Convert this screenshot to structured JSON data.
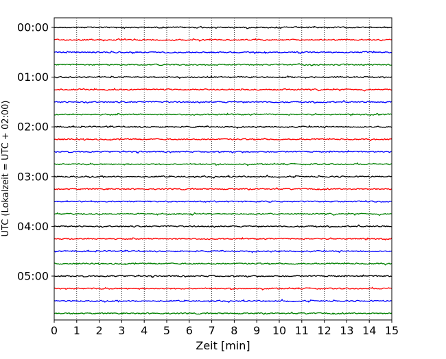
{
  "chart_data": {
    "type": "line",
    "title": "",
    "xlabel": "Zeit  [min]",
    "ylabel": "UTC (Lokalzeit = UTC + 02:00)",
    "xlim": [
      0,
      15
    ],
    "x_ticks": [
      "0",
      "1",
      "2",
      "3",
      "4",
      "5",
      "6",
      "7",
      "8",
      "9",
      "10",
      "11",
      "12",
      "13",
      "14",
      "15"
    ],
    "y_tick_labels": [
      "00:00",
      "01:00",
      "02:00",
      "03:00",
      "04:00",
      "05:00"
    ],
    "rows_per_hour": 4,
    "row_interval_min": 15,
    "row_count": 24,
    "row_colors": [
      "#000000",
      "#ff0000",
      "#0000ff",
      "#008000"
    ],
    "grid": "vertical dotted at each minute",
    "series": [
      {
        "start": "00:00"
      },
      {
        "start": "00:15"
      },
      {
        "start": "00:30"
      },
      {
        "start": "00:45"
      },
      {
        "start": "01:00"
      },
      {
        "start": "01:15"
      },
      {
        "start": "01:30"
      },
      {
        "start": "01:45"
      },
      {
        "start": "02:00"
      },
      {
        "start": "02:15"
      },
      {
        "start": "02:30"
      },
      {
        "start": "02:45"
      },
      {
        "start": "03:00"
      },
      {
        "start": "03:15"
      },
      {
        "start": "03:30"
      },
      {
        "start": "03:45"
      },
      {
        "start": "04:00"
      },
      {
        "start": "04:15"
      },
      {
        "start": "04:30"
      },
      {
        "start": "04:45"
      },
      {
        "start": "05:00"
      },
      {
        "start": "05:15"
      },
      {
        "start": "05:30"
      },
      {
        "start": "05:45"
      }
    ]
  }
}
